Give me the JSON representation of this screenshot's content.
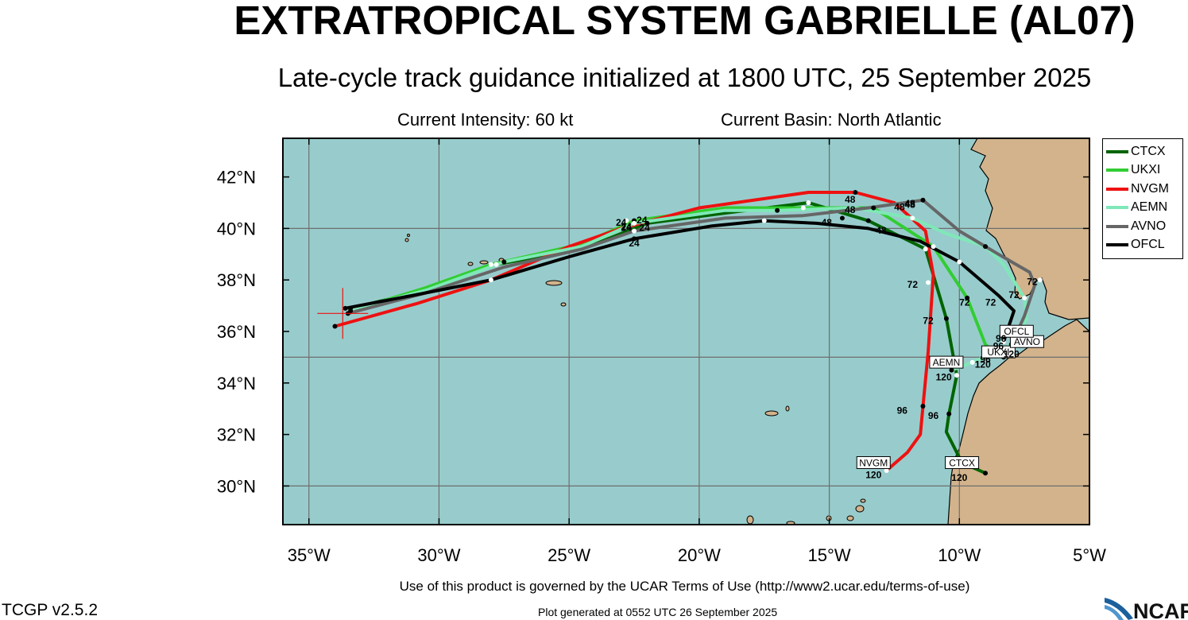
{
  "title": "EXTRATROPICAL SYSTEM GABRIELLE (AL07)",
  "subtitle": "Late-cycle track guidance initialized at 1800 UTC, 25 September 2025",
  "current_intensity": "Current Intensity: 60 kt",
  "current_basin": "Current Basin: North Atlantic",
  "terms": "Use of this product is governed by the UCAR Terms of Use (http://www2.ucar.edu/terms-of-use)",
  "version": "TCGP v2.5.2",
  "generated": "Plot generated at 0552 UTC   26 September 2025",
  "logo_text": "NCAR",
  "colors": {
    "ocean": "#98cccc",
    "land": "#d2b38c",
    "grid": "#6e6e6e"
  },
  "map_extent": {
    "lon": [
      -36,
      -5
    ],
    "lat": [
      28.5,
      43.5
    ]
  },
  "lon_ticks": [
    {
      "lon": -35,
      "label": "35°W"
    },
    {
      "lon": -30,
      "label": "30°W"
    },
    {
      "lon": -25,
      "label": "25°W"
    },
    {
      "lon": -20,
      "label": "20°W"
    },
    {
      "lon": -15,
      "label": "15°W"
    },
    {
      "lon": -10,
      "label": "10°W"
    },
    {
      "lon": -5,
      "label": "5°W"
    }
  ],
  "lat_ticks": [
    {
      "lat": 30,
      "label": "30°N"
    },
    {
      "lat": 32,
      "label": "32°N"
    },
    {
      "lat": 34,
      "label": "34°N"
    },
    {
      "lat": 36,
      "label": "36°N"
    },
    {
      "lat": 38,
      "label": "38°N"
    },
    {
      "lat": 40,
      "label": "40°N"
    },
    {
      "lat": 42,
      "label": "42°N"
    }
  ],
  "grid_lon": [
    -35,
    -30,
    -25,
    -20,
    -15,
    -10
  ],
  "grid_lat": [
    30,
    35,
    40
  ],
  "current_position": {
    "lon": -33.7,
    "lat": 36.7
  },
  "models": [
    {
      "name": "CTCX",
      "color": "#006400",
      "track": [
        [
          -33.4,
          36.9
        ],
        [
          -30.5,
          37.6
        ],
        [
          -27.8,
          38.6
        ],
        [
          -24.5,
          39.2
        ],
        [
          -22.0,
          40.2
        ],
        [
          -19.0,
          40.6
        ],
        [
          -15.8,
          41.0
        ],
        [
          -13.5,
          40.3
        ],
        [
          -11.3,
          39.2
        ],
        [
          -10.5,
          36.5
        ],
        [
          -10.1,
          34.3
        ],
        [
          -10.4,
          32.8
        ],
        [
          -10.5,
          32.1
        ],
        [
          -9.9,
          30.9
        ],
        [
          -9.0,
          30.5
        ]
      ],
      "points": [
        [
          -33.4,
          36.9
        ],
        [
          -27.8,
          38.6
        ],
        [
          -22.0,
          40.2
        ],
        [
          -15.8,
          41.0
        ],
        [
          -13.5,
          40.3
        ],
        [
          -11.3,
          39.2
        ],
        [
          -10.5,
          36.5
        ],
        [
          -10.1,
          34.3
        ],
        [
          -10.4,
          32.8
        ],
        [
          -9.9,
          30.9
        ],
        [
          -9.0,
          30.5
        ]
      ],
      "labels": [
        {
          "text": "96",
          "lon": -11.0,
          "lat": 32.6
        },
        {
          "text": "72",
          "lon": -11.2,
          "lat": 36.3
        },
        {
          "text": "120",
          "lon": -10.0,
          "lat": 30.2
        }
      ],
      "box": {
        "text": "CTCX",
        "lon": -9.9,
        "lat": 30.8
      }
    },
    {
      "name": "UKXI",
      "color": "#32cd32",
      "track": [
        [
          -33.4,
          36.8
        ],
        [
          -30.5,
          37.7
        ],
        [
          -28.0,
          38.6
        ],
        [
          -24.5,
          39.4
        ],
        [
          -22.5,
          40.3
        ],
        [
          -19.0,
          40.8
        ],
        [
          -16.0,
          40.8
        ],
        [
          -13.3,
          40.8
        ],
        [
          -11.0,
          39.3
        ],
        [
          -9.7,
          37.3
        ],
        [
          -9.0,
          35.5
        ],
        [
          -8.7,
          35.2
        ],
        [
          -8.3,
          35.0
        ]
      ],
      "points": [
        [
          -33.4,
          36.8
        ],
        [
          -28.0,
          38.6
        ],
        [
          -22.5,
          40.3
        ],
        [
          -16.0,
          40.8
        ],
        [
          -13.3,
          40.8
        ],
        [
          -11.0,
          39.3
        ],
        [
          -9.7,
          37.3
        ],
        [
          -8.7,
          35.2
        ],
        [
          -8.3,
          35.0
        ]
      ],
      "labels": [
        {
          "text": "24",
          "lon": -22.8,
          "lat": 39.9
        },
        {
          "text": "72",
          "lon": -9.8,
          "lat": 37.0
        },
        {
          "text": "96",
          "lon": -9.0,
          "lat": 34.8
        }
      ],
      "box": {
        "text": "UKXI",
        "lon": -8.5,
        "lat": 35.1
      }
    },
    {
      "name": "NVGM",
      "color": "#ee1111",
      "track": [
        [
          -34.0,
          36.2
        ],
        [
          -30.8,
          37.1
        ],
        [
          -28.0,
          38.0
        ],
        [
          -25.0,
          39.3
        ],
        [
          -23.0,
          40.0
        ],
        [
          -20.0,
          40.8
        ],
        [
          -15.8,
          41.4
        ],
        [
          -14.0,
          41.4
        ],
        [
          -12.5,
          41.0
        ],
        [
          -11.3,
          39.9
        ],
        [
          -11.0,
          38.2
        ],
        [
          -11.2,
          35.2
        ],
        [
          -11.4,
          33.1
        ],
        [
          -11.5,
          32.0
        ],
        [
          -12.0,
          31.3
        ],
        [
          -12.8,
          30.6
        ]
      ],
      "points": [
        [
          -34.0,
          36.2
        ],
        [
          -22.8,
          40.3
        ],
        [
          -14.0,
          41.4
        ],
        [
          -11.2,
          37.9
        ],
        [
          -11.4,
          33.1
        ],
        [
          -12.8,
          30.6
        ]
      ],
      "labels": [
        {
          "text": "48",
          "lon": -14.2,
          "lat": 41.0
        },
        {
          "text": "72",
          "lon": -11.8,
          "lat": 37.7
        },
        {
          "text": "96",
          "lon": -12.2,
          "lat": 32.8
        },
        {
          "text": "120",
          "lon": -13.3,
          "lat": 30.3
        }
      ],
      "box": {
        "text": "NVGM",
        "lon": -13.3,
        "lat": 30.8
      }
    },
    {
      "name": "AEMN",
      "color": "#7fe8b8",
      "track": [
        [
          -33.5,
          36.8
        ],
        [
          -30.5,
          37.6
        ],
        [
          -27.5,
          38.7
        ],
        [
          -24.5,
          39.3
        ],
        [
          -22.5,
          40.2
        ],
        [
          -19.0,
          40.7
        ],
        [
          -17.0,
          40.7
        ],
        [
          -14.0,
          40.8
        ],
        [
          -11.8,
          40.4
        ],
        [
          -10.5,
          39.8
        ],
        [
          -9.0,
          39.3
        ],
        [
          -8.3,
          38.6
        ],
        [
          -7.5,
          37.3
        ],
        [
          -7.4,
          36.5
        ],
        [
          -8.0,
          35.5
        ],
        [
          -9.5,
          34.8
        ],
        [
          -10.3,
          34.5
        ]
      ],
      "points": [
        [
          -27.5,
          38.7
        ],
        [
          -22.5,
          40.2
        ],
        [
          -17.0,
          40.7
        ],
        [
          -11.8,
          40.4
        ],
        [
          -9.0,
          39.3
        ],
        [
          -7.5,
          37.3
        ],
        [
          -8.0,
          35.5
        ],
        [
          -9.5,
          34.8
        ],
        [
          -10.3,
          34.5
        ]
      ],
      "labels": [
        {
          "text": "48",
          "lon": -12.3,
          "lat": 40.7
        },
        {
          "text": "72",
          "lon": -7.9,
          "lat": 37.3
        },
        {
          "text": "120",
          "lon": -10.6,
          "lat": 34.1
        }
      ],
      "box": {
        "text": "AEMN",
        "lon": -10.5,
        "lat": 34.7
      }
    },
    {
      "name": "AVNO",
      "color": "#666666",
      "track": [
        [
          -33.5,
          36.7
        ],
        [
          -30.5,
          37.5
        ],
        [
          -27.5,
          38.5
        ],
        [
          -24.5,
          39.2
        ],
        [
          -22.5,
          39.9
        ],
        [
          -19.0,
          40.4
        ],
        [
          -16.0,
          40.5
        ],
        [
          -13.5,
          40.8
        ],
        [
          -11.4,
          41.1
        ],
        [
          -10.0,
          39.9
        ],
        [
          -8.5,
          39.0
        ],
        [
          -7.3,
          38.3
        ],
        [
          -7.1,
          37.8
        ],
        [
          -7.5,
          36.6
        ],
        [
          -7.9,
          35.7
        ],
        [
          -7.9,
          35.4
        ]
      ],
      "points": [
        [
          -33.5,
          36.7
        ],
        [
          -22.5,
          39.9
        ],
        [
          -11.4,
          41.1
        ],
        [
          -6.9,
          38.0
        ],
        [
          -7.9,
          35.5
        ]
      ],
      "labels": [
        {
          "text": "24",
          "lon": -22.1,
          "lat": 39.9
        },
        {
          "text": "48",
          "lon": -11.9,
          "lat": 40.8
        },
        {
          "text": "72",
          "lon": -7.2,
          "lat": 37.8
        },
        {
          "text": "96",
          "lon": -8.5,
          "lat": 35.3
        }
      ],
      "box": {
        "text": "AVNO",
        "lon": -7.4,
        "lat": 35.5
      }
    },
    {
      "name": "OFCL",
      "color": "#000000",
      "track": [
        [
          -33.6,
          36.9
        ],
        [
          -31.0,
          37.4
        ],
        [
          -28.0,
          38.0
        ],
        [
          -25.0,
          38.9
        ],
        [
          -22.5,
          39.6
        ],
        [
          -19.5,
          40.1
        ],
        [
          -17.5,
          40.3
        ],
        [
          -15.5,
          40.2
        ],
        [
          -13.5,
          40.0
        ],
        [
          -11.5,
          39.5
        ],
        [
          -10.0,
          38.7
        ],
        [
          -8.5,
          37.4
        ],
        [
          -7.9,
          36.8
        ],
        [
          -8.2,
          35.9
        ],
        [
          -8.3,
          35.6
        ]
      ],
      "points": [
        [
          -33.6,
          36.9
        ],
        [
          -28.0,
          38.0
        ],
        [
          -22.5,
          39.6
        ],
        [
          -17.5,
          40.3
        ],
        [
          -14.5,
          40.4
        ],
        [
          -10.0,
          38.7
        ],
        [
          -8.3,
          35.9
        ],
        [
          -8.3,
          35.6
        ]
      ],
      "labels": [
        {
          "text": "24",
          "lon": -22.5,
          "lat": 39.3
        },
        {
          "text": "48",
          "lon": -13.0,
          "lat": 39.8
        },
        {
          "text": "72",
          "lon": -8.8,
          "lat": 37.0
        }
      ],
      "box": {
        "text": "OFCL",
        "lon": -7.8,
        "lat": 35.9
      }
    }
  ],
  "extra_labels": [
    {
      "text": "24",
      "lon": -23.0,
      "lat": 40.1
    },
    {
      "text": "24",
      "lon": -22.2,
      "lat": 40.2
    },
    {
      "text": "24",
      "lon": -22.8,
      "lat": 39.95
    },
    {
      "text": "48",
      "lon": -15.1,
      "lat": 40.1
    },
    {
      "text": "48",
      "lon": -14.2,
      "lat": 40.6
    },
    {
      "text": "48",
      "lon": -11.9,
      "lat": 40.85
    },
    {
      "text": "120",
      "lon": -8.0,
      "lat": 35.0
    },
    {
      "text": "96",
      "lon": -8.4,
      "lat": 35.6
    },
    {
      "text": "120",
      "lon": -9.1,
      "lat": 34.6
    }
  ]
}
